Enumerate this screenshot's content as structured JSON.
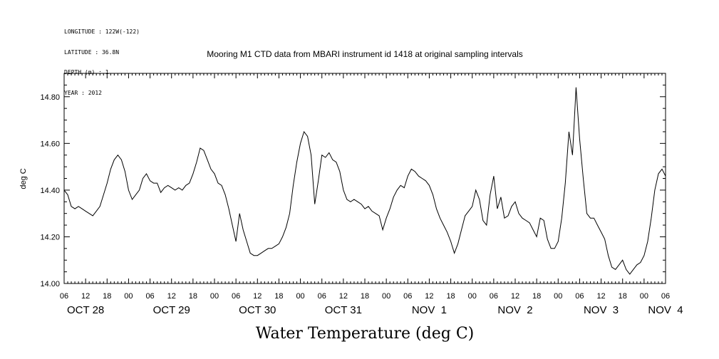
{
  "metadata": [
    "LONGITUDE : 122W(-122)",
    "LATITUDE : 36.8N",
    "DEPTH (m) : 1",
    "YEAR : 2012"
  ],
  "chart_data": {
    "type": "line",
    "title": "Mooring M1 CTD data from MBARI instrument id 1418 at original sampling intervals",
    "xlabel": "Water Temperature (deg C)",
    "ylabel": "deg C",
    "ylim": [
      14.0,
      14.9
    ],
    "xlim_hours": [
      0,
      168
    ],
    "y_ticks": [
      "14.00",
      "14.20",
      "14.40",
      "14.60",
      "14.80"
    ],
    "x_hour_ticks": [
      "06",
      "12",
      "18",
      "00",
      "06",
      "12",
      "18",
      "00",
      "06",
      "12",
      "18",
      "00",
      "06",
      "12",
      "18",
      "00",
      "06",
      "12",
      "18",
      "00",
      "06",
      "12",
      "18",
      "00",
      "06",
      "12",
      "18",
      "00",
      "06"
    ],
    "x_day_labels": [
      "OCT 28",
      "OCT 29",
      "OCT 30",
      "OCT 31",
      "NOV  1",
      "NOV  2",
      "NOV  3",
      "NOV  4"
    ],
    "grid": false,
    "series": [
      {
        "values": [
          [
            0,
            14.4
          ],
          [
            1,
            14.38
          ],
          [
            2,
            14.33
          ],
          [
            3,
            14.32
          ],
          [
            4,
            14.33
          ],
          [
            5,
            14.32
          ],
          [
            6,
            14.31
          ],
          [
            7,
            14.3
          ],
          [
            8,
            14.29
          ],
          [
            9,
            14.31
          ],
          [
            10,
            14.33
          ],
          [
            11,
            14.38
          ],
          [
            12,
            14.43
          ],
          [
            13,
            14.49
          ],
          [
            14,
            14.53
          ],
          [
            15,
            14.55
          ],
          [
            16,
            14.53
          ],
          [
            17,
            14.48
          ],
          [
            18,
            14.4
          ],
          [
            19,
            14.36
          ],
          [
            20,
            14.38
          ],
          [
            21,
            14.4
          ],
          [
            22,
            14.45
          ],
          [
            23,
            14.47
          ],
          [
            24,
            14.44
          ],
          [
            25,
            14.43
          ],
          [
            26,
            14.43
          ],
          [
            27,
            14.39
          ],
          [
            28,
            14.41
          ],
          [
            29,
            14.42
          ],
          [
            30,
            14.41
          ],
          [
            31,
            14.4
          ],
          [
            32,
            14.41
          ],
          [
            33,
            14.4
          ],
          [
            34,
            14.42
          ],
          [
            35,
            14.43
          ],
          [
            36,
            14.47
          ],
          [
            37,
            14.52
          ],
          [
            38,
            14.58
          ],
          [
            39,
            14.57
          ],
          [
            40,
            14.53
          ],
          [
            41,
            14.49
          ],
          [
            42,
            14.47
          ],
          [
            43,
            14.43
          ],
          [
            44,
            14.42
          ],
          [
            45,
            14.38
          ],
          [
            46,
            14.32
          ],
          [
            47,
            14.25
          ],
          [
            48,
            14.18
          ],
          [
            49,
            14.3
          ],
          [
            50,
            14.23
          ],
          [
            51,
            14.18
          ],
          [
            52,
            14.13
          ],
          [
            53,
            14.12
          ],
          [
            54,
            14.12
          ],
          [
            55,
            14.13
          ],
          [
            56,
            14.14
          ],
          [
            57,
            14.15
          ],
          [
            58,
            14.15
          ],
          [
            59,
            14.16
          ],
          [
            60,
            14.17
          ],
          [
            61,
            14.2
          ],
          [
            62,
            14.24
          ],
          [
            63,
            14.3
          ],
          [
            64,
            14.42
          ],
          [
            65,
            14.52
          ],
          [
            66,
            14.6
          ],
          [
            67,
            14.65
          ],
          [
            68,
            14.63
          ],
          [
            69,
            14.55
          ],
          [
            70,
            14.34
          ],
          [
            71,
            14.44
          ],
          [
            72,
            14.55
          ],
          [
            73,
            14.54
          ],
          [
            74,
            14.56
          ],
          [
            75,
            14.53
          ],
          [
            76,
            14.52
          ],
          [
            77,
            14.48
          ],
          [
            78,
            14.4
          ],
          [
            79,
            14.36
          ],
          [
            80,
            14.35
          ],
          [
            81,
            14.36
          ],
          [
            82,
            14.35
          ],
          [
            83,
            14.34
          ],
          [
            84,
            14.32
          ],
          [
            85,
            14.33
          ],
          [
            86,
            14.31
          ],
          [
            87,
            14.3
          ],
          [
            88,
            14.29
          ],
          [
            89,
            14.23
          ],
          [
            90,
            14.28
          ],
          [
            91,
            14.32
          ],
          [
            92,
            14.37
          ],
          [
            93,
            14.4
          ],
          [
            94,
            14.42
          ],
          [
            95,
            14.41
          ],
          [
            96,
            14.46
          ],
          [
            97,
            14.49
          ],
          [
            98,
            14.48
          ],
          [
            99,
            14.46
          ],
          [
            100,
            14.45
          ],
          [
            101,
            14.44
          ],
          [
            102,
            14.42
          ],
          [
            103,
            14.38
          ],
          [
            104,
            14.32
          ],
          [
            105,
            14.28
          ],
          [
            106,
            14.25
          ],
          [
            107,
            14.22
          ],
          [
            108,
            14.18
          ],
          [
            109,
            14.13
          ],
          [
            110,
            14.17
          ],
          [
            111,
            14.23
          ],
          [
            112,
            14.29
          ],
          [
            113,
            14.31
          ],
          [
            114,
            14.33
          ],
          [
            115,
            14.4
          ],
          [
            116,
            14.36
          ],
          [
            117,
            14.27
          ],
          [
            118,
            14.25
          ],
          [
            119,
            14.38
          ],
          [
            120,
            14.46
          ],
          [
            121,
            14.32
          ],
          [
            122,
            14.37
          ],
          [
            123,
            14.28
          ],
          [
            124,
            14.29
          ],
          [
            125,
            14.33
          ],
          [
            126,
            14.35
          ],
          [
            127,
            14.3
          ],
          [
            128,
            14.28
          ],
          [
            129,
            14.27
          ],
          [
            130,
            14.26
          ],
          [
            131,
            14.23
          ],
          [
            132,
            14.2
          ],
          [
            133,
            14.28
          ],
          [
            134,
            14.27
          ],
          [
            135,
            14.19
          ],
          [
            136,
            14.15
          ],
          [
            137,
            14.15
          ],
          [
            138,
            14.18
          ],
          [
            139,
            14.28
          ],
          [
            140,
            14.43
          ],
          [
            141,
            14.65
          ],
          [
            142,
            14.55
          ],
          [
            143,
            14.84
          ],
          [
            144,
            14.62
          ],
          [
            145,
            14.45
          ],
          [
            146,
            14.3
          ],
          [
            147,
            14.28
          ],
          [
            148,
            14.28
          ],
          [
            149,
            14.25
          ],
          [
            150,
            14.22
          ],
          [
            151,
            14.19
          ],
          [
            152,
            14.12
          ],
          [
            153,
            14.07
          ],
          [
            154,
            14.06
          ],
          [
            155,
            14.08
          ],
          [
            156,
            14.1
          ],
          [
            157,
            14.06
          ],
          [
            158,
            14.04
          ],
          [
            159,
            14.06
          ],
          [
            160,
            14.08
          ],
          [
            161,
            14.09
          ],
          [
            162,
            14.12
          ],
          [
            163,
            14.18
          ],
          [
            164,
            14.28
          ],
          [
            165,
            14.4
          ],
          [
            166,
            14.47
          ],
          [
            167,
            14.49
          ],
          [
            168,
            14.46
          ]
        ]
      }
    ]
  }
}
